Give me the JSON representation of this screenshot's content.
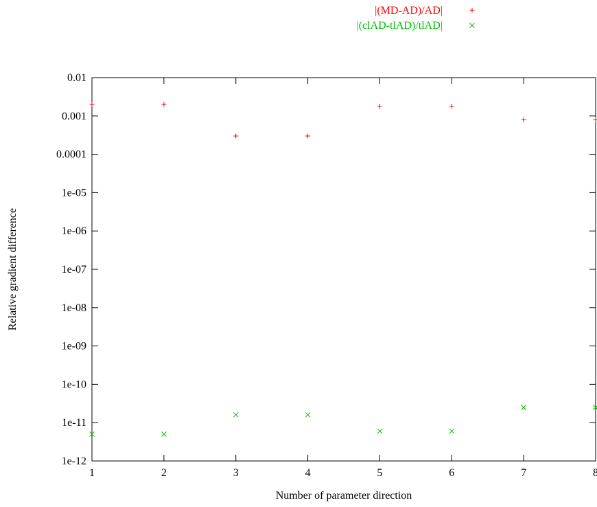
{
  "chart_data": {
    "type": "scatter",
    "title": "",
    "xlabel": "Number of parameter direction",
    "ylabel": "Relative gradient difference",
    "xlim": [
      1,
      8
    ],
    "ylim": [
      1e-12,
      0.01
    ],
    "yscale": "log",
    "x_ticks": [
      "1",
      "2",
      "3",
      "4",
      "5",
      "6",
      "7",
      "8"
    ],
    "y_ticks": [
      "0.01",
      "0.001",
      "0.0001",
      "1e-05",
      "1e-06",
      "1e-07",
      "1e-08",
      "1e-09",
      "1e-10",
      "1e-11",
      "1e-12"
    ],
    "grid": false,
    "legend_position": "top-right",
    "series": [
      {
        "name": "|(MD-AD)/AD|",
        "marker": "plus",
        "color": "#ff0000",
        "x": [
          1,
          2,
          3,
          4,
          5,
          6,
          7,
          8
        ],
        "y": [
          0.002,
          0.002,
          0.0003,
          0.0003,
          0.0018,
          0.0018,
          0.0008,
          0.0008
        ]
      },
      {
        "name": "|(clAD-tlAD)/tlAD|",
        "marker": "cross",
        "color": "#00c000",
        "x": [
          1,
          2,
          3,
          4,
          5,
          6,
          7,
          8
        ],
        "y": [
          5e-12,
          5e-12,
          1.6e-11,
          1.6e-11,
          6e-12,
          6e-12,
          2.5e-11,
          2.5e-11
        ]
      }
    ]
  }
}
